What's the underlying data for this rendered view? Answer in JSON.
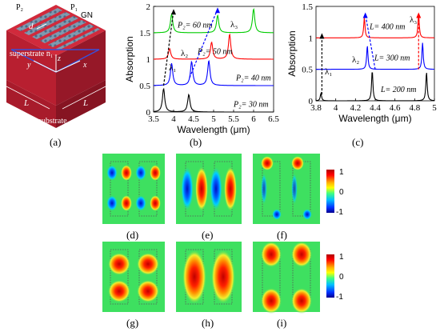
{
  "panels": {
    "a": "(a)",
    "b": "(b)",
    "c": "(c)",
    "d": "(d)",
    "e": "(e)",
    "f": "(f)",
    "g": "(g)",
    "h": "(h)",
    "i": "(i)"
  },
  "schematic": {
    "p2": "P₂",
    "p1": "P₁",
    "gn": "GN",
    "d": "d",
    "superstrate": "superstrate n₁",
    "substrate": "substrate",
    "x": "x",
    "y": "y",
    "z": "z",
    "L1": "L",
    "L2": "L",
    "colors": {
      "top": "#c8283a",
      "side": "#b01e2e",
      "dark": "#8e1422",
      "grating": "#6b8ea8",
      "stripe": "#4a6fd0"
    }
  },
  "chart_data": [
    {
      "type": "line",
      "xlabel": "Wavelength (μm)",
      "ylabel": "Absorption",
      "xlim": [
        3.5,
        6.5
      ],
      "ylim": [
        0,
        2
      ],
      "xticks": [
        "3.5",
        "4",
        "4.5",
        "5",
        "5.5",
        "6",
        "6.5"
      ],
      "yticks": [
        "0",
        "0.5",
        "1",
        "1.5",
        "2"
      ],
      "grid": false,
      "series": [
        {
          "name": "P₂= 30 nm",
          "color": "#000000",
          "offset": 0.0,
          "peaks": [
            [
              3.75,
              0.44
            ],
            [
              4.38,
              0.33
            ]
          ]
        },
        {
          "name": "P₂= 40 nm",
          "color": "#0000ff",
          "offset": 0.5,
          "peaks": [
            [
              3.95,
              0.42
            ],
            [
              4.45,
              0.45
            ],
            [
              4.88,
              0.47
            ]
          ]
        },
        {
          "name": "P₂= 50 nm",
          "color": "#ff0000",
          "offset": 1.0,
          "peaks": [
            [
              3.9,
              0.2
            ],
            [
              4.95,
              0.32
            ],
            [
              5.4,
              0.47
            ]
          ]
        },
        {
          "name": "P₂= 60 nm",
          "color": "#00cc00",
          "offset": 1.5,
          "peaks": [
            [
              3.95,
              0.35
            ],
            [
              5.1,
              0.33
            ],
            [
              6.0,
              0.45
            ]
          ]
        }
      ],
      "annotations": [
        "λ₁",
        "λ₂",
        "λ₃"
      ]
    },
    {
      "type": "line",
      "xlabel": "Wavelength (μm)",
      "ylabel": "Absorption",
      "xlim": [
        3.8,
        5.0
      ],
      "ylim": [
        0,
        1.5
      ],
      "xticks": [
        "3.8",
        "4",
        "4.2",
        "4.4",
        "4.6",
        "4.8",
        "5"
      ],
      "yticks": [
        "0",
        "0.5",
        "1",
        "1.5"
      ],
      "grid": false,
      "series": [
        {
          "name": "L= 200 nm",
          "color": "#000000",
          "offset": 0.0,
          "peaks": [
            [
              3.85,
              0.12
            ],
            [
              4.37,
              0.48
            ],
            [
              4.92,
              0.46
            ]
          ]
        },
        {
          "name": "L= 300 nm",
          "color": "#0000ff",
          "offset": 0.5,
          "peaks": [
            [
              4.32,
              0.38
            ],
            [
              4.88,
              0.42
            ]
          ]
        },
        {
          "name": "L= 400 nm",
          "color": "#ff0000",
          "offset": 1.0,
          "peaks": [
            [
              4.29,
              0.32
            ],
            [
              4.84,
              0.38
            ]
          ]
        }
      ],
      "annotations": [
        "λ₁",
        "λ₂",
        "λ₃"
      ]
    },
    {
      "type": "heatmap",
      "colorbar": {
        "ticks": [
          "1",
          "0",
          "-1"
        ],
        "range": [
          -1,
          1
        ]
      },
      "maps": [
        {
          "panel": "d",
          "pattern": "dipole-pairs"
        },
        {
          "panel": "e",
          "pattern": "side-lobes"
        },
        {
          "panel": "f",
          "pattern": "corner-lobes"
        }
      ]
    },
    {
      "type": "heatmap",
      "colorbar": {
        "ticks": [
          "1",
          "0",
          "-1"
        ],
        "range": [
          -1,
          1
        ]
      },
      "maps": [
        {
          "panel": "g",
          "pattern": "double-spots"
        },
        {
          "panel": "h",
          "pattern": "single-spot"
        },
        {
          "panel": "i",
          "pattern": "edge-spots"
        }
      ]
    }
  ]
}
